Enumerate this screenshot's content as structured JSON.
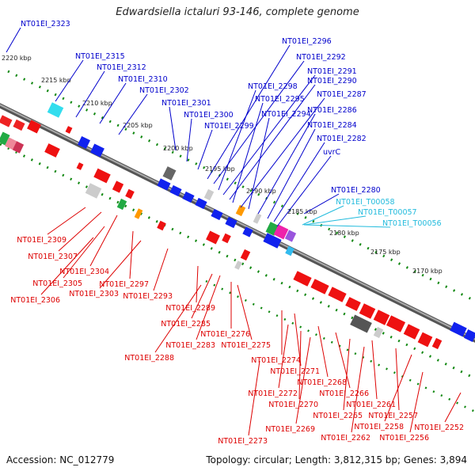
{
  "title": "Edwardsiella ictaluri 93-146, complete genome",
  "footer": {
    "accession": "Accession: NC_012779",
    "topology": "Topology: circular; Length: 3,812,315 bp; Genes: 3,894"
  },
  "colors": {
    "blue": "#0000cc",
    "red": "#dd0000",
    "cyan": "#22bbdd",
    "tick": "#118811",
    "backbone": "#888888"
  },
  "kbp_labels": [
    "2220 kbp",
    "2215 kbp",
    "2210 kbp",
    "2205 kbp",
    "2200 kbp",
    "2195 kbp",
    "2190 kbp",
    "2185 kbp",
    "2180 kbp",
    "2175 kbp",
    "2170 kbp"
  ],
  "genes_top": [
    {
      "label": "NT01EI_2323",
      "color": "blue"
    },
    {
      "label": "NT01EI_2315",
      "color": "blue"
    },
    {
      "label": "NT01EI_2312",
      "color": "blue"
    },
    {
      "label": "NT01EI_2310",
      "color": "blue"
    },
    {
      "label": "NT01EI_2302",
      "color": "blue"
    },
    {
      "label": "NT01EI_2301",
      "color": "blue"
    },
    {
      "label": "NT01EI_2300",
      "color": "blue"
    },
    {
      "label": "NT01EI_2299",
      "color": "blue"
    },
    {
      "label": "NT01EI_2296",
      "color": "blue"
    },
    {
      "label": "NT01EI_2292",
      "color": "blue"
    },
    {
      "label": "NT01EI_2298",
      "color": "blue"
    },
    {
      "label": "NT01EI_2291",
      "color": "blue"
    },
    {
      "label": "NT01EI_2290",
      "color": "blue"
    },
    {
      "label": "NT01EI_2295",
      "color": "blue"
    },
    {
      "label": "NT01EI_2287",
      "color": "blue"
    },
    {
      "label": "NT01EI_2294",
      "color": "blue"
    },
    {
      "label": "NT01EI_2286",
      "color": "blue"
    },
    {
      "label": "NT01EI_2284",
      "color": "blue"
    },
    {
      "label": "NT01EI_2282",
      "color": "blue"
    },
    {
      "label": "uvrC",
      "color": "blue"
    },
    {
      "label": "NT01EI_2280",
      "color": "blue"
    },
    {
      "label": "NT01EI_T00058",
      "color": "cyan"
    },
    {
      "label": "NT01EI_T00057",
      "color": "cyan"
    },
    {
      "label": "NT01EI_T00056",
      "color": "cyan"
    }
  ],
  "genes_bottom": [
    {
      "label": "NT01EI_2309"
    },
    {
      "label": "NT01EI_2307"
    },
    {
      "label": "NT01EI_2304"
    },
    {
      "label": "NT01EI_2305"
    },
    {
      "label": "NT01EI_2297"
    },
    {
      "label": "NT01EI_2306"
    },
    {
      "label": "NT01EI_2303"
    },
    {
      "label": "NT01EI_2293"
    },
    {
      "label": "NT01EI_2289"
    },
    {
      "label": "NT01EI_2285"
    },
    {
      "label": "NT01EI_2276"
    },
    {
      "label": "NT01EI_2283"
    },
    {
      "label": "NT01EI_2275"
    },
    {
      "label": "NT01EI_2288"
    },
    {
      "label": "NT01EI_2274"
    },
    {
      "label": "NT01EI_2271"
    },
    {
      "label": "NT01EI_2268"
    },
    {
      "label": "NT01EI_2272"
    },
    {
      "label": "NT01EI_2266"
    },
    {
      "label": "NT01EI_2270"
    },
    {
      "label": "NT01EI_2261"
    },
    {
      "label": "NT01EI_2265"
    },
    {
      "label": "NT01EI_2257"
    },
    {
      "label": "NT01EI_2269"
    },
    {
      "label": "NT01EI_2258"
    },
    {
      "label": "NT01EI_2252"
    },
    {
      "label": "NT01EI_2262"
    },
    {
      "label": "NT01EI_2256"
    },
    {
      "label": "NT01EI_2273"
    }
  ]
}
